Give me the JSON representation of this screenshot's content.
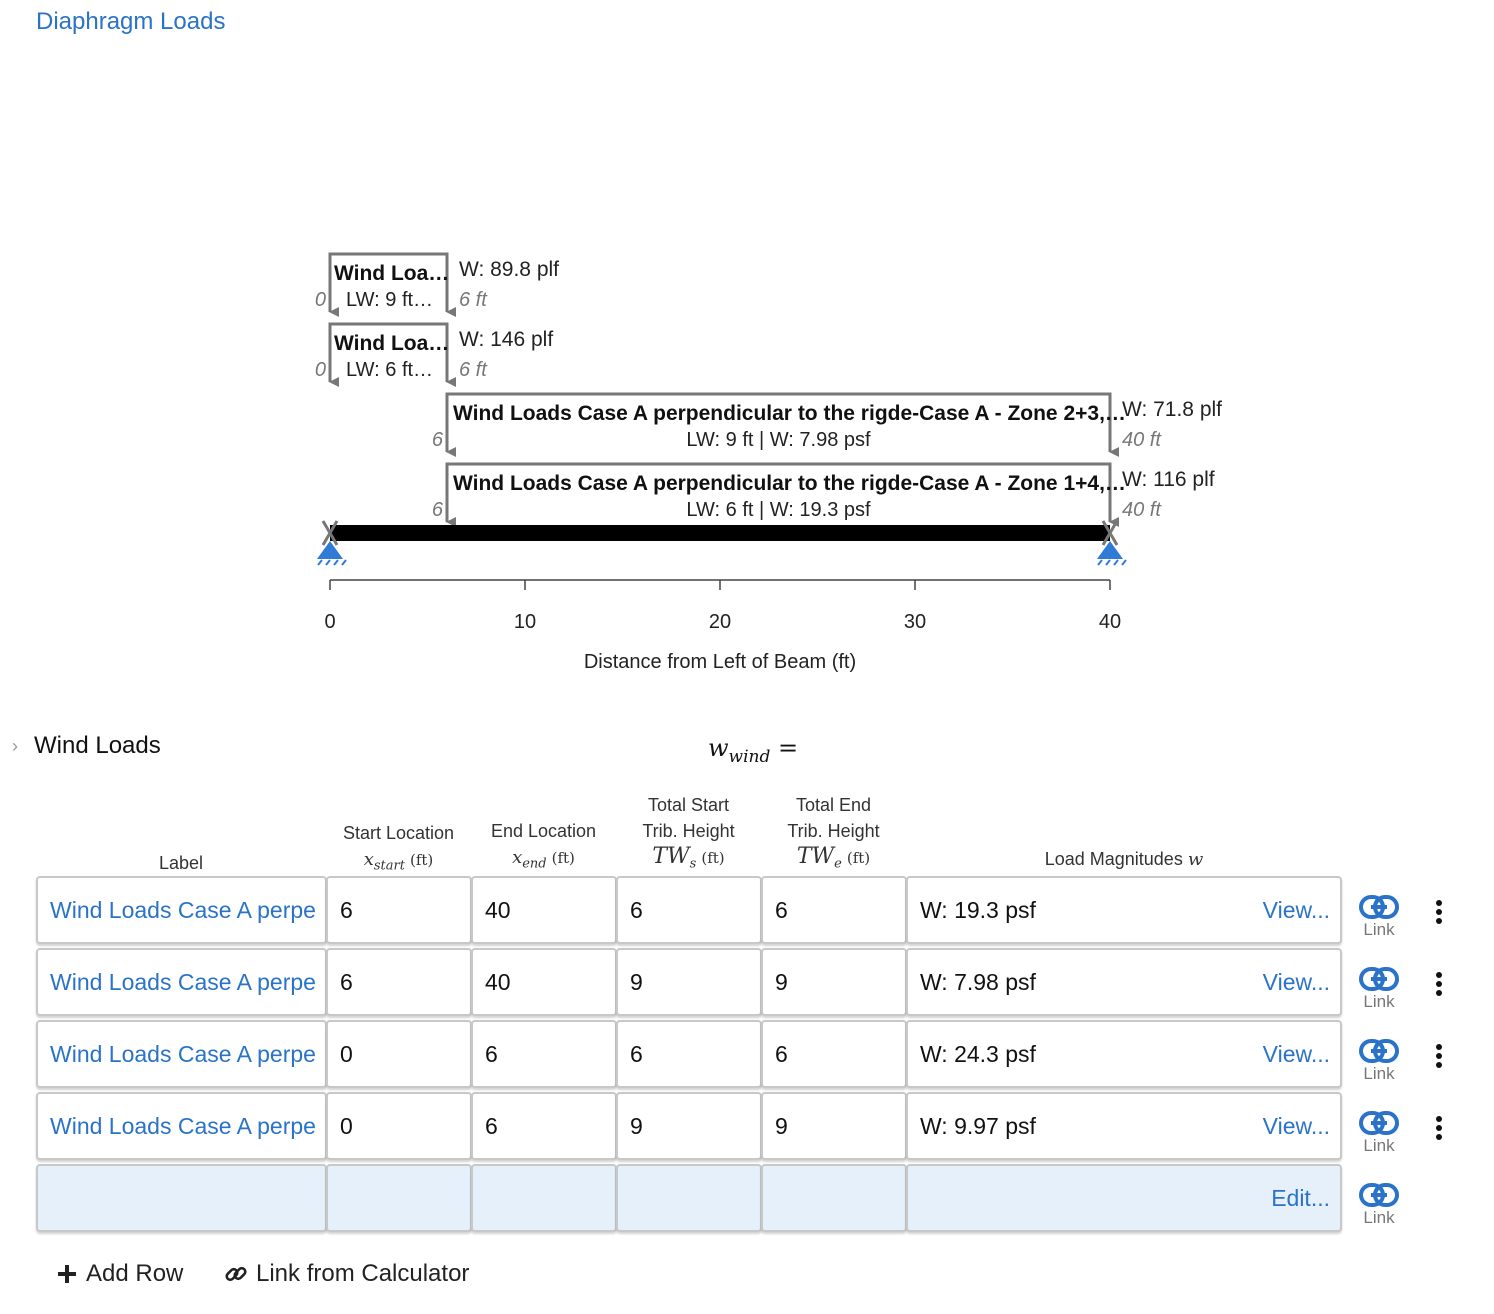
{
  "header": {
    "title_link": "Diaphragm Loads"
  },
  "diagram": {
    "loads": [
      {
        "label": "Wind Loa…",
        "sub": "LW: 9 ft…",
        "magnitude": "W: 89.8 plf",
        "start": "0",
        "end": "6 ft",
        "x_start": 0,
        "x_end": 6
      },
      {
        "label": "Wind Loa…",
        "sub": "LW: 6 ft…",
        "magnitude": "W: 146 plf",
        "start": "0",
        "end": "6 ft",
        "x_start": 0,
        "x_end": 6
      },
      {
        "label": "Wind Loads Case A perpendicular to the rigde-Case A - Zone 2+3,…",
        "sub": "LW: 9 ft | W: 7.98 psf",
        "magnitude": "W: 71.8 plf",
        "start": "6",
        "end": "40 ft",
        "x_start": 6,
        "x_end": 40
      },
      {
        "label": "Wind Loads Case A perpendicular to the rigde-Case A - Zone 1+4,…",
        "sub": "LW: 6 ft | W: 19.3 psf",
        "magnitude": "W: 116 plf",
        "start": "6",
        "end": "40 ft",
        "x_start": 6,
        "x_end": 40
      }
    ],
    "beam_length": 40,
    "axis": {
      "ticks": [
        "0",
        "10",
        "20",
        "30",
        "40"
      ],
      "tick_values": [
        0,
        10,
        20,
        30,
        40
      ],
      "label": "Distance from Left of Beam (ft)"
    }
  },
  "section": {
    "title": "Wind Loads",
    "formula_var": "w",
    "formula_sub": "wind",
    "formula_eq": "="
  },
  "table": {
    "headers": {
      "label": "Label",
      "start": {
        "line1": "Start Location",
        "math": "x",
        "sub": "start",
        "unit": "(ft)"
      },
      "end": {
        "line1": "End Location",
        "math": "x",
        "sub": "end",
        "unit": "(ft)"
      },
      "tws": {
        "line1": "Total Start",
        "line2": "Trib. Height",
        "math": "TW",
        "sub": "s",
        "unit": "(ft)"
      },
      "twe": {
        "line1": "Total End",
        "line2": "Trib. Height",
        "math": "TW",
        "sub": "e",
        "unit": "(ft)"
      },
      "mag": {
        "text": "Load Magnitudes",
        "math": "w"
      }
    },
    "rows": [
      {
        "label": "Wind Loads Case A perpe",
        "start": "6",
        "end": "40",
        "tws": "6",
        "twe": "6",
        "magnitude": "W: 19.3 psf",
        "action": "View..."
      },
      {
        "label": "Wind Loads Case A perpe",
        "start": "6",
        "end": "40",
        "tws": "9",
        "twe": "9",
        "magnitude": "W: 7.98 psf",
        "action": "View..."
      },
      {
        "label": "Wind Loads Case A perpe",
        "start": "0",
        "end": "6",
        "tws": "6",
        "twe": "6",
        "magnitude": "W: 24.3 psf",
        "action": "View..."
      },
      {
        "label": "Wind Loads Case A perpe",
        "start": "0",
        "end": "6",
        "tws": "9",
        "twe": "9",
        "magnitude": "W: 9.97 psf",
        "action": "View..."
      }
    ],
    "empty_row": {
      "action": "Edit..."
    },
    "link_label": "Link"
  },
  "actions": {
    "add_row": "Add Row",
    "link_calc": "Link from Calculator"
  },
  "colors": {
    "accent": "#2a73c8",
    "empty_row_bg": "#e6f0fb",
    "load_gray": "#777777",
    "support_blue": "#2f7bd6"
  }
}
